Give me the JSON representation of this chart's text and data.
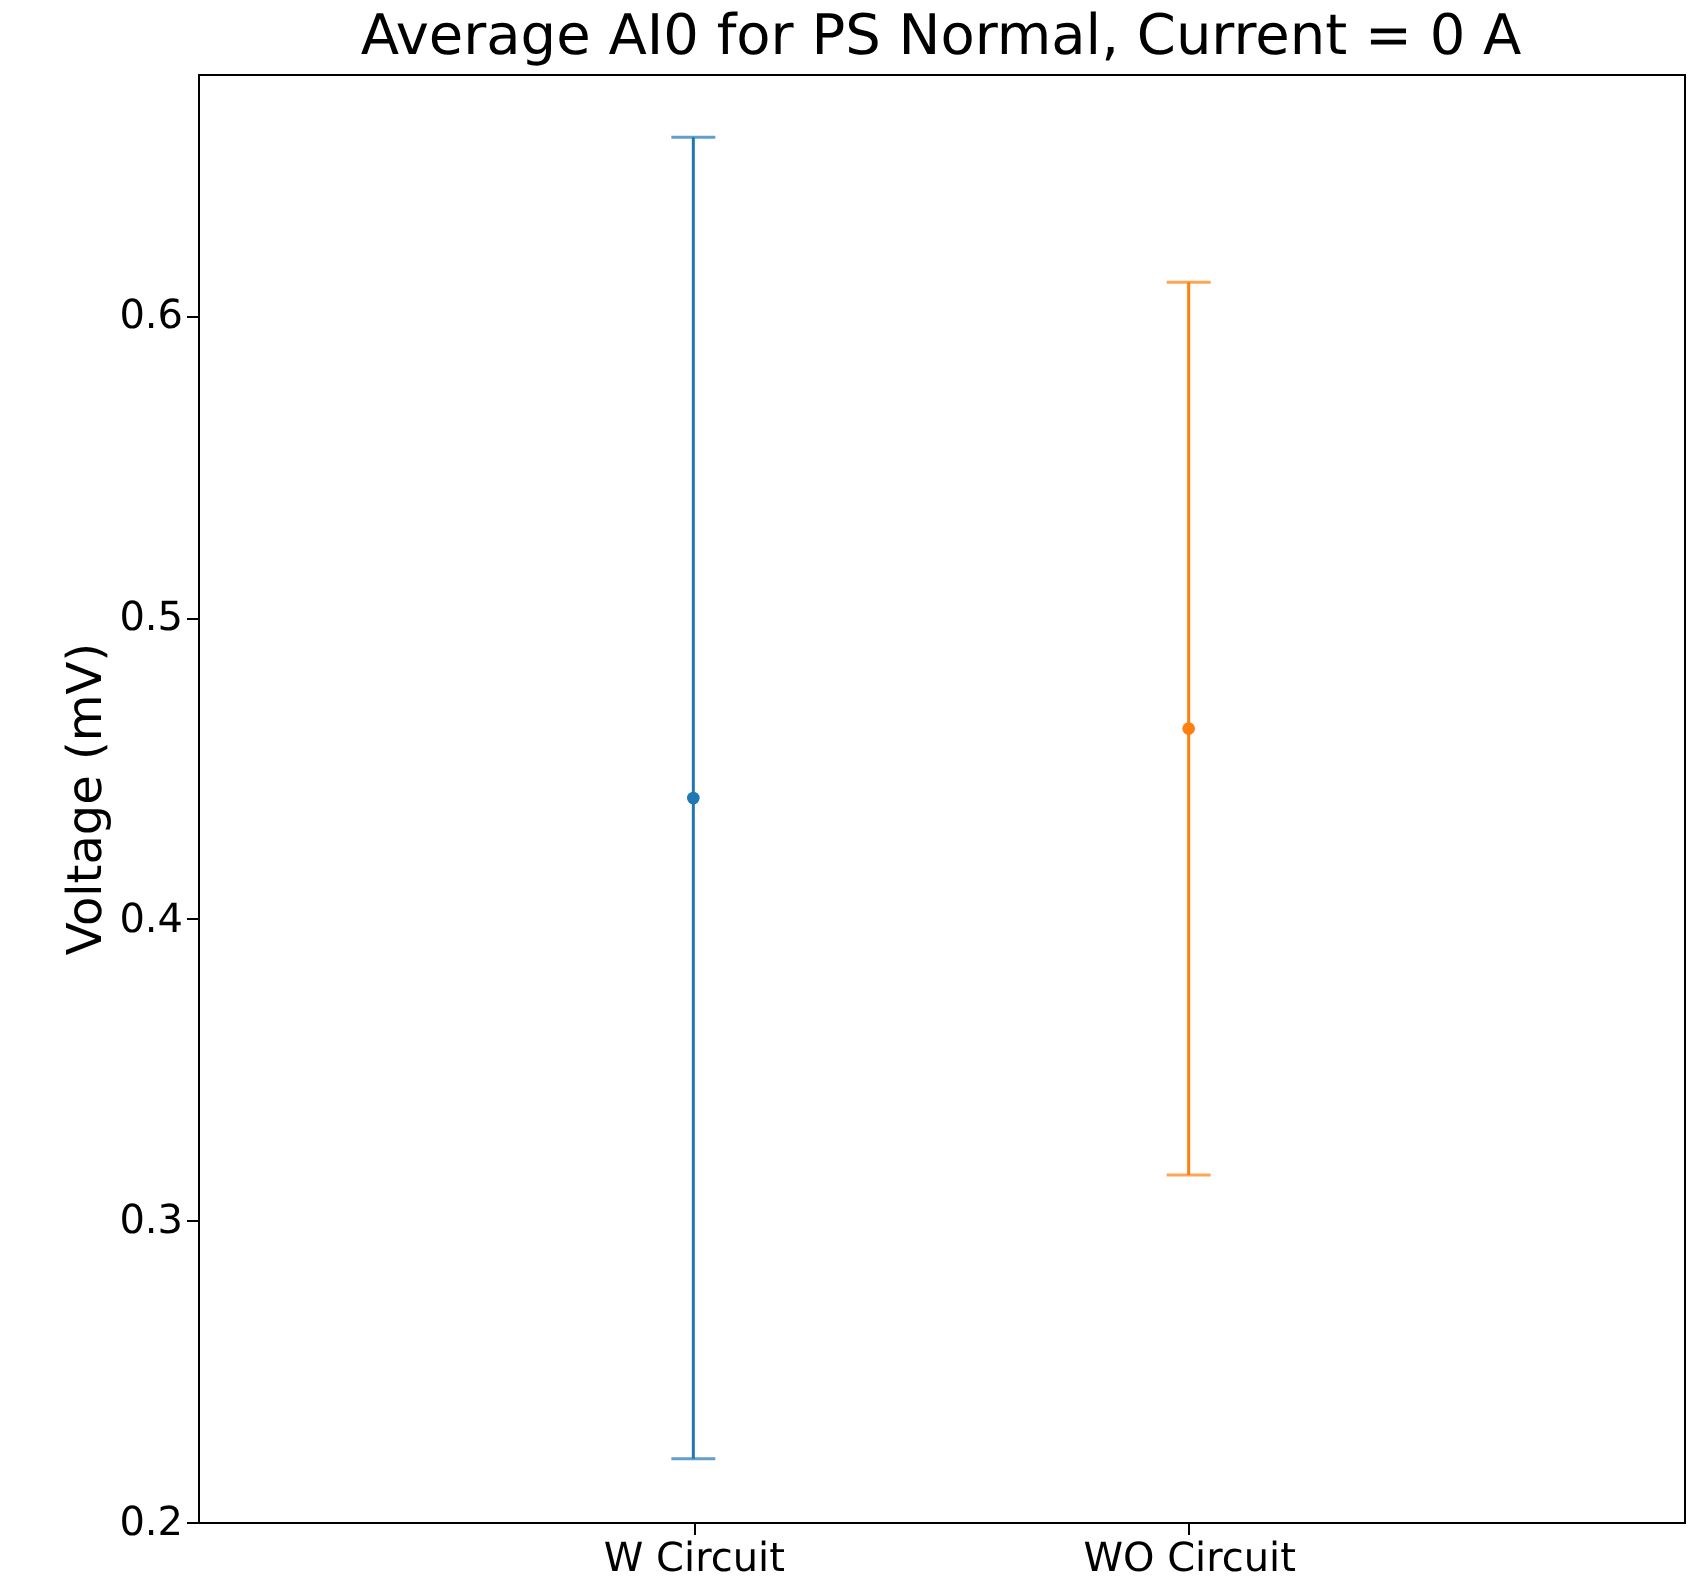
{
  "chart_data": {
    "type": "scatter",
    "title": "Average AI0 for PS Normal, Current = 0 A",
    "ylabel": "Voltage (mV)",
    "categories": [
      "W Circuit",
      "WO Circuit"
    ],
    "values": [
      0.44,
      0.463
    ],
    "errors": [
      0.219,
      0.148
    ],
    "colors": [
      "#1f77b4",
      "#ff7f0e"
    ],
    "ylim": [
      0.2,
      0.68
    ],
    "yticks": [
      0.2,
      0.3,
      0.4,
      0.5,
      0.6
    ],
    "grid": false,
    "marker": "circle"
  }
}
